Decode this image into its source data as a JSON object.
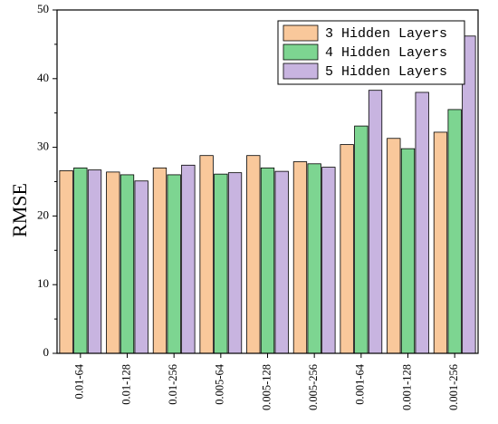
{
  "chart_data": {
    "type": "bar",
    "categories": [
      "0.01-64",
      "0.01-128",
      "0.01-256",
      "0.005-64",
      "0.005-128",
      "0.005-256",
      "0.001-64",
      "0.001-128",
      "0.001-256"
    ],
    "series": [
      {
        "name": "3 Hidden Layers",
        "values": [
          26.6,
          26.4,
          27.0,
          28.8,
          28.8,
          27.9,
          30.4,
          31.3,
          32.2
        ],
        "color": "#F9C89B"
      },
      {
        "name": "4 Hidden Layers",
        "values": [
          27.0,
          26.0,
          26.0,
          26.1,
          27.0,
          27.6,
          33.1,
          29.8,
          35.5
        ],
        "color": "#7DD591"
      },
      {
        "name": "5 Hidden Layers",
        "values": [
          26.7,
          25.1,
          27.4,
          26.3,
          26.5,
          27.1,
          38.3,
          38.0,
          46.2
        ],
        "color": "#C8B4E0"
      }
    ],
    "xlabel": "",
    "ylabel": "RMSE",
    "ylim": [
      0,
      50
    ],
    "yticks": [
      0,
      10,
      20,
      30,
      40,
      50
    ],
    "grid": false,
    "legend_position": "top-right"
  }
}
